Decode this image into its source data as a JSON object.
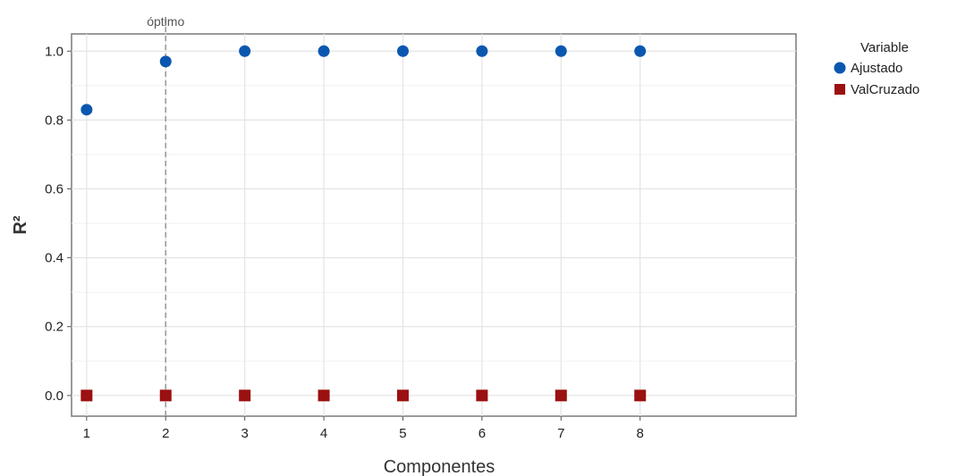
{
  "chart_data": {
    "type": "scatter",
    "x": [
      1,
      2,
      3,
      4,
      5,
      6,
      7,
      8
    ],
    "xticks": [
      "1",
      "2",
      "3",
      "4",
      "5",
      "6",
      "7",
      "8"
    ],
    "yticks": [
      "0.0",
      "0.2",
      "0.4",
      "0.6",
      "0.8",
      "1.0"
    ],
    "xlim": [
      0.9,
      9.1
    ],
    "ylim": [
      -0.06,
      1.05
    ],
    "xlabel": "Componentes",
    "ylabel": "R²",
    "grid": true,
    "legend": {
      "title": "Variable",
      "placement": "right"
    },
    "series": [
      {
        "name": "Ajustado",
        "marker": "circle",
        "color": "#0b57b0",
        "values": [
          0.83,
          0.97,
          1.0,
          1.0,
          1.0,
          1.0,
          1.0,
          1.0
        ]
      },
      {
        "name": "ValCruzado",
        "marker": "square",
        "color": "#9b1010",
        "values": [
          0.0,
          0.0,
          0.0,
          0.0,
          0.0,
          0.0,
          0.0,
          0.0
        ]
      }
    ],
    "annotations": [
      {
        "text": "óptimo",
        "x": 2,
        "style": "dashed-vertical-line"
      }
    ]
  }
}
